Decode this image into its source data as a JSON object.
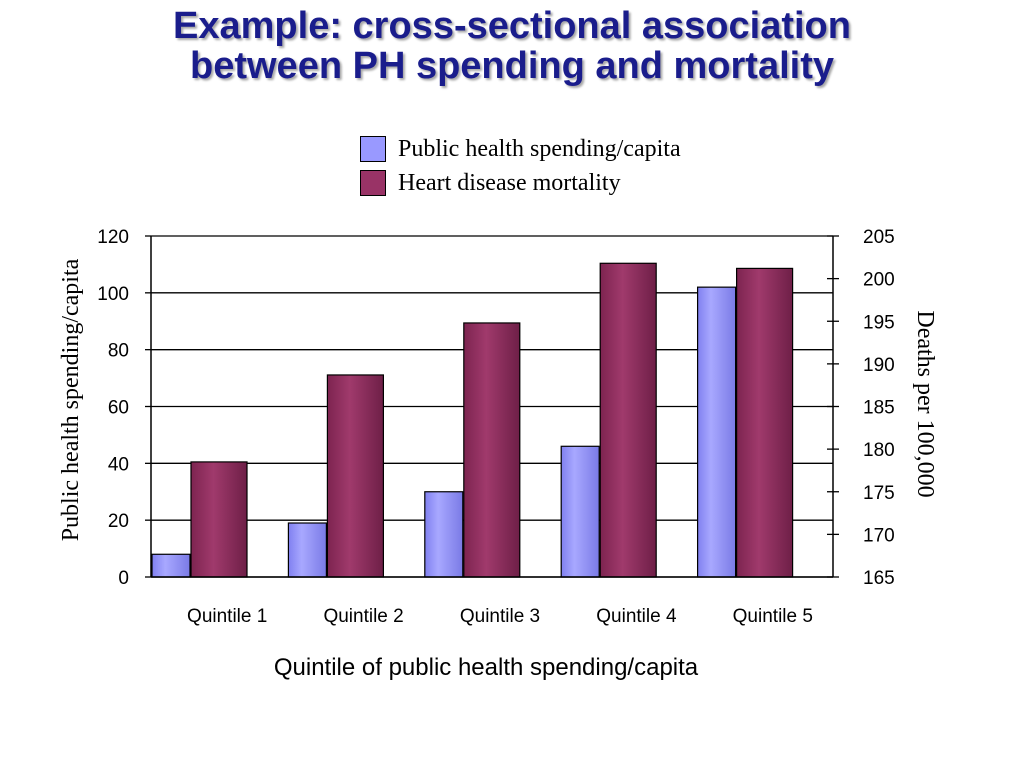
{
  "slide": {
    "title_line1": "Example: cross-sectional association",
    "title_line2": "between PH spending and mortality"
  },
  "chart_data": {
    "type": "bar",
    "categories": [
      "Quintile 1",
      "Quintile 2",
      "Quintile 3",
      "Quintile 4",
      "Quintile 5"
    ],
    "series": [
      {
        "name": "Public health spending/capita",
        "axis": "left",
        "color": "#9999ff",
        "values": [
          8,
          19,
          30,
          46,
          102
        ]
      },
      {
        "name": "Heart disease mortality",
        "axis": "right",
        "color": "#993366",
        "values": [
          178.5,
          188.7,
          194.8,
          201.8,
          201.2
        ]
      }
    ],
    "xlabel": "Quintile of public health spending/capita",
    "ylabel_left": "Public health spending/capita",
    "ylabel_right": "Deaths per 100,000",
    "ylim_left": [
      0,
      120
    ],
    "yticks_left": [
      0,
      20,
      40,
      60,
      80,
      100,
      120
    ],
    "ylim_right": [
      165,
      205
    ],
    "yticks_right": [
      165,
      170,
      175,
      180,
      185,
      190,
      195,
      200,
      205
    ],
    "grid": "horizontal",
    "legend_position": "top-right"
  }
}
